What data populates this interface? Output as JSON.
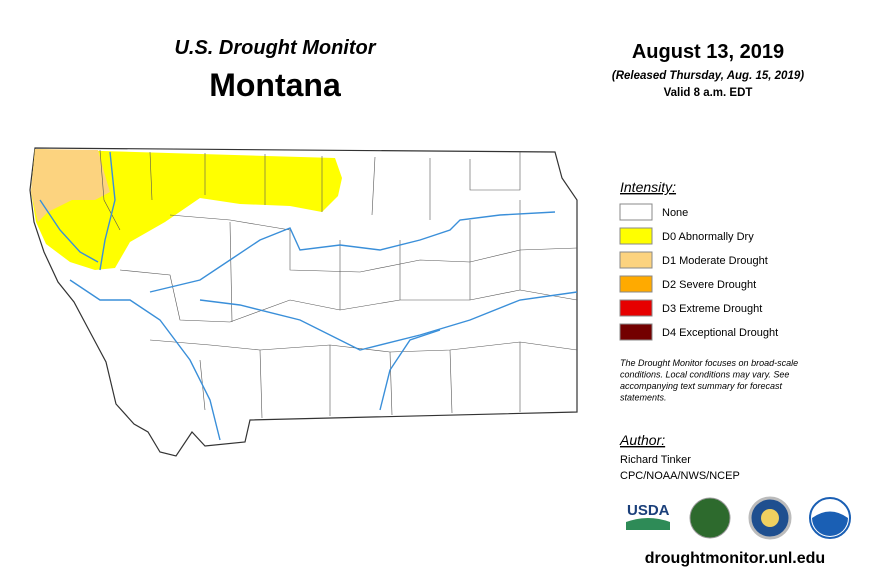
{
  "header": {
    "subtitle": "U.S. Drought Monitor",
    "title": "Montana",
    "date": "August 13, 2019",
    "released": "(Released Thursday, Aug. 15, 2019)",
    "valid": "Valid 8 a.m. EDT"
  },
  "legend": {
    "title": "Intensity:",
    "items": [
      {
        "label": "None",
        "color": "#ffffff"
      },
      {
        "label": "D0 Abnormally Dry",
        "color": "#ffff00"
      },
      {
        "label": "D1 Moderate Drought",
        "color": "#fcd37f"
      },
      {
        "label": "D2 Severe Drought",
        "color": "#ffaa00"
      },
      {
        "label": "D3 Extreme Drought",
        "color": "#e60000"
      },
      {
        "label": "D4 Exceptional Drought",
        "color": "#730000"
      }
    ],
    "note": [
      "The Drought Monitor focuses on broad-scale",
      "conditions. Local conditions may vary. See",
      "accompanying text summary for forecast",
      "statements."
    ]
  },
  "author": {
    "heading": "Author:",
    "name": "Richard Tinker",
    "org": "CPC/NOAA/NWS/NCEP"
  },
  "logos": {
    "usda": "USDA"
  },
  "footer": {
    "url": "droughtmonitor.unl.edu"
  }
}
